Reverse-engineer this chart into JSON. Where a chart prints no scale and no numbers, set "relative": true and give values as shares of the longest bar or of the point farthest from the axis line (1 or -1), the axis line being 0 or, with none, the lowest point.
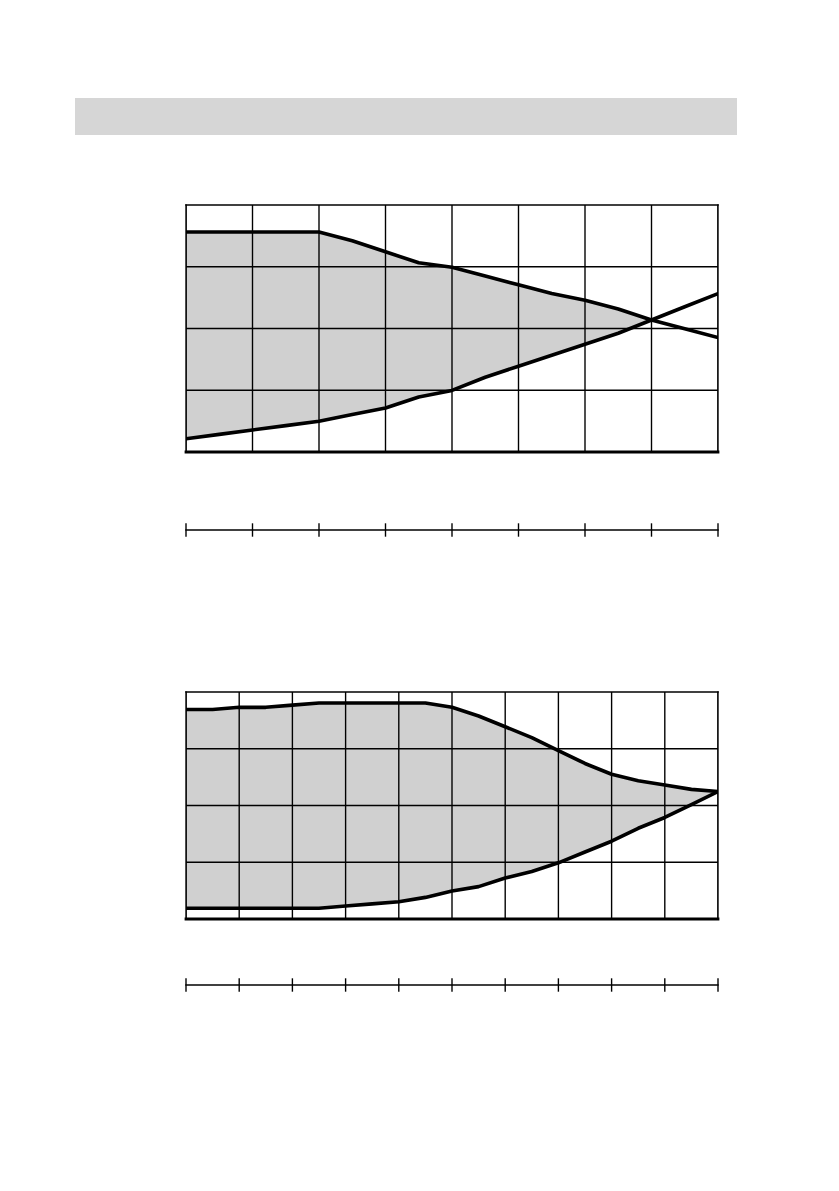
{
  "chart_data": [
    {
      "type": "line",
      "relative": true,
      "grid": true,
      "categories": [
        null,
        null,
        null,
        null,
        null,
        null,
        null,
        null,
        null,
        null,
        null,
        null,
        null,
        null,
        null,
        null,
        null
      ],
      "series": [
        {
          "color": "#000000",
          "values": [
            1,
            1,
            1,
            1,
            1.0,
            0.96,
            0.91,
            0.86,
            0.84,
            0.8,
            0.76,
            0.72,
            0.69,
            0.65,
            0.6,
            0.56,
            0.52
          ],
          "lower": [
            0.06,
            0.08,
            0.1,
            0.12,
            0.14,
            0.17,
            0.2,
            0.25,
            0.28,
            0.34,
            0.39,
            0.44,
            0.49,
            0.54,
            0.6,
            null,
            null
          ],
          "upper": [
            1,
            1,
            1,
            1,
            1.0,
            0.96,
            0.91,
            0.86,
            0.84,
            0.8,
            0.76,
            0.72,
            0.69,
            0.65,
            0.6,
            null,
            null
          ]
        },
        {
          "color": "#000000",
          "values": [
            0.06,
            0.08,
            0.1,
            0.12,
            0.14,
            0.17,
            0.2,
            0.25,
            0.28,
            0.34,
            0.39,
            0.44,
            0.49,
            0.54,
            0.6,
            0.66,
            0.72
          ]
        }
      ]
    },
    {
      "type": "line",
      "relative": true,
      "grid": true,
      "categories": [
        null,
        null,
        null,
        null,
        null,
        null,
        null,
        null,
        null,
        null,
        null,
        null,
        null,
        null,
        null,
        null,
        null,
        null,
        null,
        null,
        null
      ],
      "series": [
        {
          "color": "#000000",
          "values": [
            0.97,
            0.97,
            0.98,
            0.98,
            0.99,
            1.0,
            1.0,
            1,
            1,
            1.0,
            0.98,
            0.94,
            0.89,
            0.84,
            0.78,
            0.72,
            0.67,
            0.64,
            0.62,
            0.6,
            0.59
          ],
          "lower": [
            0.05,
            0.05,
            0.05,
            0.05,
            0.05,
            0.05,
            0.06,
            0.07,
            0.08,
            0.1,
            0.13,
            0.15,
            0.19,
            0.22,
            0.26,
            0.31,
            0.36,
            0.42,
            0.47,
            0.53,
            0.59
          ],
          "upper": [
            0.97,
            0.97,
            0.98,
            0.98,
            0.99,
            1.0,
            1.0,
            1,
            1,
            1.0,
            0.98,
            0.94,
            0.89,
            0.84,
            0.78,
            0.72,
            0.67,
            0.64,
            0.62,
            0.6,
            0.59
          ]
        },
        {
          "color": "#000000",
          "values": [
            0.05,
            0.05,
            0.05,
            0.05,
            0.05,
            0.05,
            0.06,
            0.07,
            0.08,
            0.1,
            0.13,
            0.15,
            0.19,
            0.22,
            0.26,
            0.31,
            0.36,
            0.42,
            0.47,
            0.53,
            0.59
          ]
        }
      ]
    }
  ]
}
